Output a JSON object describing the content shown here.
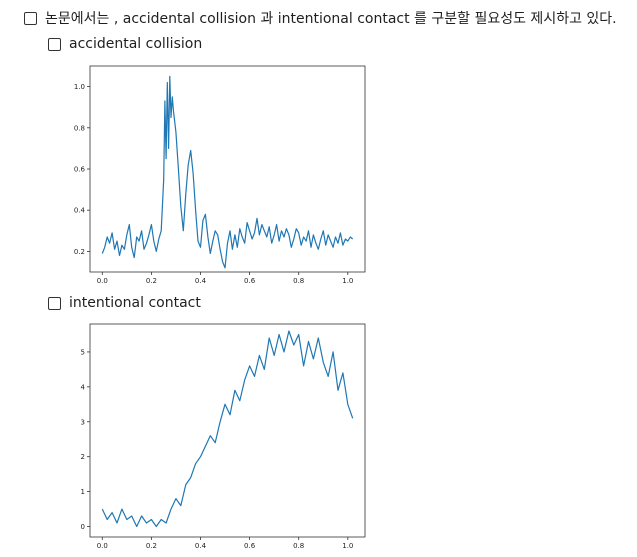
{
  "main": {
    "top_item": "논문에서는 , accidental collision 과 intentional contact 를 구분할 필요성도 제시하고 있다.",
    "sub_items": [
      {
        "label": "accidental collision"
      },
      {
        "label": "intentional contact"
      }
    ]
  },
  "colors": {
    "line": "#1f77b4",
    "axes": "#333333",
    "text": "#1f1f1f"
  },
  "chart_data": [
    {
      "type": "line",
      "title": "",
      "xlabel": "",
      "ylabel": "",
      "xlim": [
        -0.05,
        1.07
      ],
      "ylim": [
        0.1,
        1.1
      ],
      "xticks": [
        0.0,
        0.2,
        0.4,
        0.6,
        0.8,
        1.0
      ],
      "yticks": [
        0.2,
        0.4,
        0.6,
        0.8,
        1.0
      ],
      "xtick_labels": [
        "0.0",
        "0.2",
        "0.4",
        "0.6",
        "0.8",
        "1.0"
      ],
      "ytick_labels": [
        "0.2",
        "0.4",
        "0.6",
        "0.8",
        "1.0"
      ],
      "grid": false,
      "series": [
        {
          "x": [
            0.0,
            0.01,
            0.02,
            0.03,
            0.04,
            0.05,
            0.06,
            0.07,
            0.08,
            0.09,
            0.1,
            0.11,
            0.12,
            0.13,
            0.14,
            0.15,
            0.16,
            0.17,
            0.18,
            0.19,
            0.2,
            0.21,
            0.22,
            0.23,
            0.24,
            0.25,
            0.255,
            0.26,
            0.265,
            0.27,
            0.275,
            0.28,
            0.285,
            0.29,
            0.3,
            0.31,
            0.32,
            0.33,
            0.34,
            0.35,
            0.36,
            0.37,
            0.38,
            0.39,
            0.4,
            0.41,
            0.42,
            0.43,
            0.44,
            0.45,
            0.46,
            0.47,
            0.48,
            0.49,
            0.5,
            0.51,
            0.52,
            0.53,
            0.54,
            0.55,
            0.56,
            0.57,
            0.58,
            0.59,
            0.6,
            0.61,
            0.62,
            0.63,
            0.64,
            0.65,
            0.66,
            0.67,
            0.68,
            0.69,
            0.7,
            0.71,
            0.72,
            0.73,
            0.74,
            0.75,
            0.76,
            0.77,
            0.78,
            0.79,
            0.8,
            0.81,
            0.82,
            0.83,
            0.84,
            0.85,
            0.86,
            0.87,
            0.88,
            0.89,
            0.9,
            0.91,
            0.92,
            0.93,
            0.94,
            0.95,
            0.96,
            0.97,
            0.98,
            0.99,
            1.0,
            1.01,
            1.02
          ],
          "values": [
            0.19,
            0.22,
            0.27,
            0.24,
            0.29,
            0.21,
            0.25,
            0.18,
            0.23,
            0.21,
            0.28,
            0.33,
            0.22,
            0.17,
            0.27,
            0.25,
            0.3,
            0.21,
            0.24,
            0.28,
            0.33,
            0.25,
            0.2,
            0.26,
            0.3,
            0.55,
            0.93,
            0.65,
            1.02,
            0.7,
            1.05,
            0.85,
            0.95,
            0.88,
            0.78,
            0.6,
            0.42,
            0.3,
            0.48,
            0.62,
            0.69,
            0.58,
            0.4,
            0.25,
            0.22,
            0.35,
            0.38,
            0.27,
            0.19,
            0.25,
            0.3,
            0.28,
            0.21,
            0.15,
            0.12,
            0.24,
            0.3,
            0.21,
            0.28,
            0.22,
            0.31,
            0.27,
            0.24,
            0.34,
            0.3,
            0.26,
            0.29,
            0.36,
            0.28,
            0.33,
            0.3,
            0.27,
            0.32,
            0.24,
            0.28,
            0.33,
            0.25,
            0.3,
            0.27,
            0.31,
            0.28,
            0.22,
            0.26,
            0.31,
            0.29,
            0.23,
            0.27,
            0.25,
            0.3,
            0.22,
            0.28,
            0.24,
            0.21,
            0.26,
            0.3,
            0.23,
            0.28,
            0.25,
            0.22,
            0.27,
            0.24,
            0.29,
            0.23,
            0.26,
            0.25,
            0.27,
            0.26
          ]
        }
      ]
    },
    {
      "type": "line",
      "title": "",
      "xlabel": "",
      "ylabel": "",
      "xlim": [
        -0.05,
        1.07
      ],
      "ylim": [
        -0.3,
        5.8
      ],
      "xticks": [
        0.0,
        0.2,
        0.4,
        0.6,
        0.8,
        1.0
      ],
      "yticks": [
        0,
        1,
        2,
        3,
        4,
        5
      ],
      "xtick_labels": [
        "0.0",
        "0.2",
        "0.4",
        "0.6",
        "0.8",
        "1.0"
      ],
      "ytick_labels": [
        "0",
        "1",
        "2",
        "3",
        "4",
        "5"
      ],
      "grid": false,
      "series": [
        {
          "x": [
            0.0,
            0.02,
            0.04,
            0.06,
            0.08,
            0.1,
            0.12,
            0.14,
            0.16,
            0.18,
            0.2,
            0.22,
            0.24,
            0.26,
            0.28,
            0.3,
            0.32,
            0.34,
            0.36,
            0.38,
            0.4,
            0.42,
            0.44,
            0.46,
            0.48,
            0.5,
            0.52,
            0.54,
            0.56,
            0.58,
            0.6,
            0.62,
            0.64,
            0.66,
            0.68,
            0.7,
            0.72,
            0.74,
            0.76,
            0.78,
            0.8,
            0.82,
            0.84,
            0.86,
            0.88,
            0.9,
            0.92,
            0.94,
            0.96,
            0.98,
            1.0,
            1.02
          ],
          "values": [
            0.5,
            0.2,
            0.4,
            0.1,
            0.5,
            0.2,
            0.3,
            0.0,
            0.3,
            0.1,
            0.2,
            0.0,
            0.2,
            0.1,
            0.5,
            0.8,
            0.6,
            1.2,
            1.4,
            1.8,
            2.0,
            2.3,
            2.6,
            2.4,
            3.0,
            3.5,
            3.2,
            3.9,
            3.6,
            4.2,
            4.6,
            4.3,
            4.9,
            4.5,
            5.4,
            4.9,
            5.5,
            5.0,
            5.6,
            5.2,
            5.5,
            4.6,
            5.3,
            4.8,
            5.4,
            4.7,
            4.3,
            5.0,
            3.9,
            4.4,
            3.5,
            3.1
          ]
        }
      ]
    }
  ]
}
